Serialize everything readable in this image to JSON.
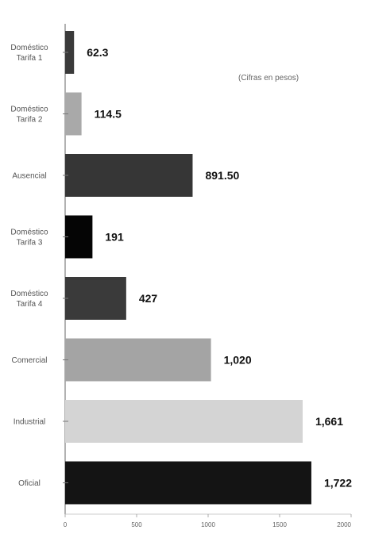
{
  "chart_data": {
    "type": "bar",
    "orientation": "horizontal",
    "note": "(Cifras en pesos)",
    "categories": [
      [
        "Doméstico",
        "Tarifa 1"
      ],
      [
        "Doméstico",
        "Tarifa 2"
      ],
      [
        "Ausencial"
      ],
      [
        "Doméstico",
        "Tarifa 3"
      ],
      [
        "Doméstico",
        "Tarifa 4"
      ],
      [
        "Comercial"
      ],
      [
        "Industrial"
      ],
      [
        "Oficial"
      ]
    ],
    "values": [
      62.3,
      114.5,
      891.5,
      191,
      427,
      1020,
      1661,
      1722
    ],
    "value_labels": [
      "62.3",
      "114.5",
      "891.50",
      "191",
      "427",
      "1,020",
      "1,661",
      "1,722"
    ],
    "bar_colors": [
      "#3a3a3a",
      "#a9a9a9",
      "#363636",
      "#050505",
      "#3a3a3a",
      "#a4a4a4",
      "#d4d4d4",
      "#141414"
    ],
    "xlim": [
      0,
      2000
    ],
    "xticks": [
      0,
      500,
      1000,
      1500,
      2000
    ],
    "xtick_labels": [
      "0",
      "500",
      "1000",
      "1500",
      "2000"
    ],
    "grid": false,
    "legend": "none"
  }
}
